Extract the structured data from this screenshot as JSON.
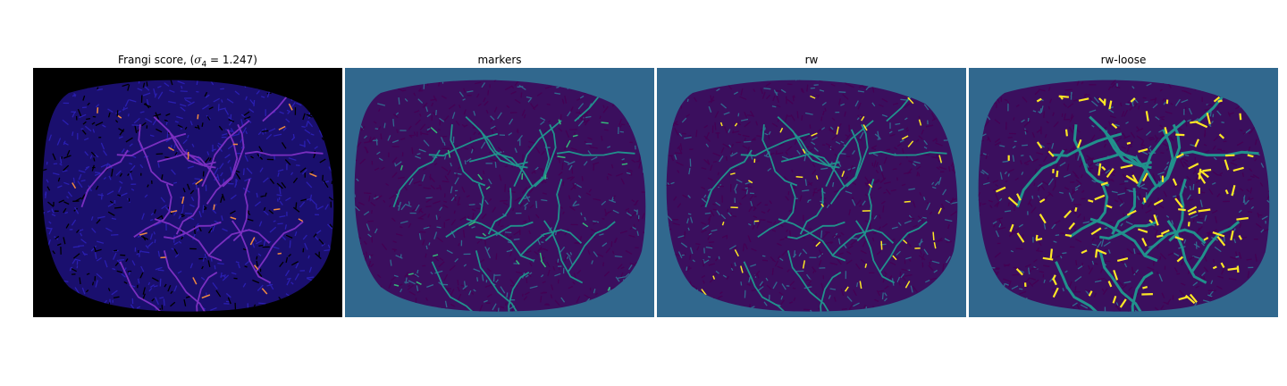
{
  "panels": [
    {
      "title_prefix": "Frangi score, (",
      "title_math": "σ",
      "title_sub": "4",
      "title_suffix": " = 1.247)",
      "background": "#000000",
      "blob": "#1a0f6e",
      "texture": "#2a1fb0",
      "vessel": "#7a2fc0",
      "highlight": "#f08a40"
    },
    {
      "title": "markers",
      "background": "#31688e",
      "blob": "#3b0f5e",
      "texture": "#440154",
      "vessel": "#21918c",
      "highlight": "#35b779"
    },
    {
      "title": "rw",
      "background": "#31688e",
      "blob": "#3b0f5e",
      "texture": "#440154",
      "vessel": "#21918c",
      "highlight": "#fde725"
    },
    {
      "title": "rw-loose",
      "background": "#31688e",
      "blob": "#3b0f5e",
      "texture": "#440154",
      "vessel": "#21918c",
      "highlight": "#fde725"
    }
  ]
}
